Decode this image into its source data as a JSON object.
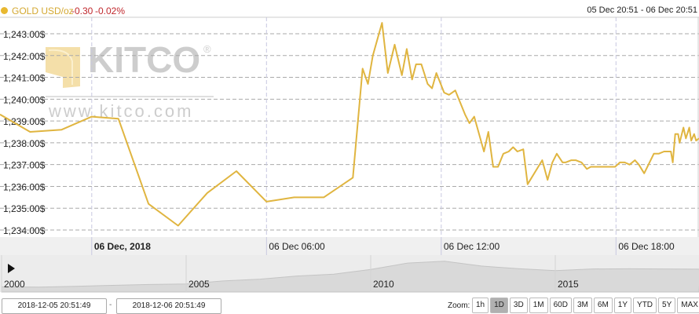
{
  "header": {
    "symbol": "GOLD USD/oz",
    "change": "-0.30",
    "change_pct": "-0.02%",
    "range": "05 Dec 20:51 - 06 Dec 20:51"
  },
  "watermark": {
    "brand": "KITCO",
    "url": "www.kitco.com"
  },
  "colors": {
    "line": "#e0b540",
    "change": "#c0282d",
    "navigator": "#d8d8d8"
  },
  "chart_data": {
    "type": "line",
    "series": [
      {
        "name": "GOLD USD/oz",
        "values": [
          [
            "2018-12-05 20:51",
            1239.3
          ],
          [
            "2018-12-05 21:53",
            1238.5
          ],
          [
            "2018-12-05 22:58",
            1238.6
          ],
          [
            "2018-12-06 00:00",
            1239.2
          ],
          [
            "2018-12-06 00:55",
            1239.1
          ],
          [
            "2018-12-06 01:57",
            1235.2
          ],
          [
            "2018-12-06 02:58",
            1234.2
          ],
          [
            "2018-12-06 03:58",
            1235.7
          ],
          [
            "2018-12-06 04:58",
            1236.7
          ],
          [
            "2018-12-06 06:00",
            1235.3
          ],
          [
            "2018-12-06 06:57",
            1235.5
          ],
          [
            "2018-12-06 07:58",
            1235.5
          ],
          [
            "2018-12-06 08:58",
            1236.4
          ],
          [
            "2018-12-06 09:18",
            1241.4
          ],
          [
            "2018-12-06 09:29",
            1240.7
          ],
          [
            "2018-12-06 09:39",
            1242.0
          ],
          [
            "2018-12-06 09:58",
            1243.5
          ],
          [
            "2018-12-06 10:10",
            1241.2
          ],
          [
            "2018-12-06 10:24",
            1242.5
          ],
          [
            "2018-12-06 10:39",
            1241.1
          ],
          [
            "2018-12-06 10:49",
            1242.3
          ],
          [
            "2018-12-06 11:00",
            1240.9
          ],
          [
            "2018-12-06 11:08",
            1241.6
          ],
          [
            "2018-12-06 11:19",
            1241.6
          ],
          [
            "2018-12-06 11:32",
            1240.7
          ],
          [
            "2018-12-06 11:41",
            1240.5
          ],
          [
            "2018-12-06 11:50",
            1241.2
          ],
          [
            "2018-12-06 12:06",
            1240.3
          ],
          [
            "2018-12-06 12:16",
            1240.2
          ],
          [
            "2018-12-06 12:29",
            1240.4
          ],
          [
            "2018-12-06 12:49",
            1239.3
          ],
          [
            "2018-12-06 12:58",
            1238.9
          ],
          [
            "2018-12-06 13:08",
            1239.2
          ],
          [
            "2018-12-06 13:28",
            1237.6
          ],
          [
            "2018-12-06 13:37",
            1238.5
          ],
          [
            "2018-12-06 13:47",
            1236.9
          ],
          [
            "2018-12-06 13:57",
            1236.9
          ],
          [
            "2018-12-06 14:08",
            1237.5
          ],
          [
            "2018-12-06 14:19",
            1237.6
          ],
          [
            "2018-12-06 14:28",
            1237.8
          ],
          [
            "2018-12-06 14:37",
            1237.6
          ],
          [
            "2018-12-06 14:49",
            1237.7
          ],
          [
            "2018-12-06 14:58",
            1236.1
          ],
          [
            "2018-12-06 15:28",
            1237.2
          ],
          [
            "2018-12-06 15:39",
            1236.3
          ],
          [
            "2018-12-06 15:49",
            1237.1
          ],
          [
            "2018-12-06 15:58",
            1237.5
          ],
          [
            "2018-12-06 16:10",
            1237.1
          ],
          [
            "2018-12-06 16:16",
            1237.1
          ],
          [
            "2018-12-06 16:28",
            1237.2
          ],
          [
            "2018-12-06 16:37",
            1237.2
          ],
          [
            "2018-12-06 16:49",
            1237.1
          ],
          [
            "2018-12-06 17:00",
            1236.8
          ],
          [
            "2018-12-06 17:08",
            1236.9
          ],
          [
            "2018-12-06 17:58",
            1236.9
          ],
          [
            "2018-12-06 18:08",
            1237.1
          ],
          [
            "2018-12-06 18:18",
            1237.1
          ],
          [
            "2018-12-06 18:28",
            1237.0
          ],
          [
            "2018-12-06 18:39",
            1237.2
          ],
          [
            "2018-12-06 18:47",
            1237.0
          ],
          [
            "2018-12-06 18:58",
            1236.6
          ],
          [
            "2018-12-06 19:18",
            1237.5
          ],
          [
            "2018-12-06 19:28",
            1237.5
          ],
          [
            "2018-12-06 19:39",
            1237.6
          ],
          [
            "2018-12-06 19:53",
            1237.6
          ],
          [
            "2018-12-06 19:57",
            1237.1
          ],
          [
            "2018-12-06 20:02",
            1238.4
          ],
          [
            "2018-12-06 20:08",
            1238.4
          ],
          [
            "2018-12-06 20:11",
            1238.0
          ],
          [
            "2018-12-06 20:19",
            1238.7
          ],
          [
            "2018-12-06 20:24",
            1238.2
          ],
          [
            "2018-12-06 20:31",
            1238.7
          ],
          [
            "2018-12-06 20:35",
            1238.1
          ],
          [
            "2018-12-06 20:41",
            1238.4
          ],
          [
            "2018-12-06 20:45",
            1238.1
          ],
          [
            "2018-12-06 20:51",
            1238.2
          ]
        ]
      }
    ],
    "xlim": [
      "2018-12-05 20:51",
      "2018-12-06 20:51"
    ],
    "ylim": [
      1233.7,
      1243.8
    ],
    "y_ticks": [
      "1,243.00$",
      "1,242.00$",
      "1,241.00$",
      "1,240.00$",
      "1,239.00$",
      "1,238.00$",
      "1,237.00$",
      "1,236.00$",
      "1,235.00$",
      "1,234.00$"
    ],
    "y_tick_values": [
      1243,
      1242,
      1241,
      1240,
      1239,
      1238,
      1237,
      1236,
      1235,
      1234
    ],
    "x_ticks": [
      "06 Dec, 2018",
      "06 Dec 06:00",
      "06 Dec 12:00",
      "06 Dec 18:00"
    ],
    "x_tick_values": [
      "2018-12-06 00:00",
      "2018-12-06 06:00",
      "2018-12-06 12:00",
      "2018-12-06 18:00"
    ],
    "grid": true,
    "navigator": {
      "type": "area",
      "x_ticks": [
        "2000",
        "2005",
        "2010",
        "2015"
      ],
      "years": [
        2000,
        2001,
        2002,
        2003,
        2004,
        2005,
        2006,
        2007,
        2008,
        2009,
        2010,
        2011,
        2012,
        2013,
        2014,
        2015,
        2016,
        2017,
        2018.93
      ],
      "values": [
        280,
        270,
        310,
        360,
        410,
        440,
        600,
        700,
        870,
        970,
        1225,
        1570,
        1670,
        1410,
        1265,
        1160,
        1250,
        1260,
        1240
      ]
    }
  },
  "range_inputs": {
    "from": "2018-12-05 20:51:49",
    "to": "2018-12-06 20:51:49",
    "separator": "-"
  },
  "zoom": {
    "label": "Zoom:",
    "buttons": [
      "1h",
      "1D",
      "3D",
      "1M",
      "60D",
      "3M",
      "6M",
      "1Y",
      "YTD",
      "5Y",
      "MAX"
    ],
    "selected": "1D"
  }
}
